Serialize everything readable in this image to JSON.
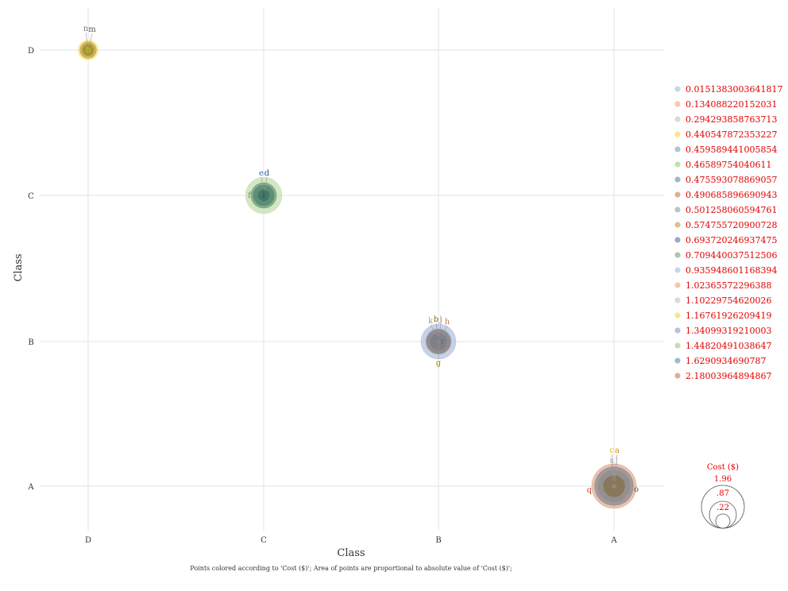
{
  "chart_data": {
    "type": "scatter",
    "title": "",
    "xlabel": "Class",
    "ylabel": "Class",
    "x_categories": [
      "D",
      "C",
      "B",
      "A"
    ],
    "y_categories": [
      "A",
      "B",
      "C",
      "D"
    ],
    "grid": true,
    "legend_placement": "right",
    "caption": "Points colored according to 'Cost ($)'; Area of points are proportional to absolute value of 'Cost ($)';",
    "size_legend": {
      "title": "Cost ($)",
      "values": [
        "1.96",
        ".87",
        ".22"
      ]
    },
    "color_legend": [
      {
        "label": "0.0151383003641817",
        "color": "#c6d7ea"
      },
      {
        "label": "0.134088220152031",
        "color": "#f7c9a7"
      },
      {
        "label": "0.294293858763713",
        "color": "#d9d9d9"
      },
      {
        "label": "0.440547872353227",
        "color": "#fde38a"
      },
      {
        "label": "0.459589441005854",
        "color": "#b4c1e0"
      },
      {
        "label": "0.46589754040611",
        "color": "#c5dfb0"
      },
      {
        "label": "0.475593078869057",
        "color": "#a9b5c7"
      },
      {
        "label": "0.490685896690943",
        "color": "#deae97"
      },
      {
        "label": "0.501258060594761",
        "color": "#bfc3c7"
      },
      {
        "label": "0.574755720900728",
        "color": "#dcc093"
      },
      {
        "label": "0.693720246937475",
        "color": "#9ba7c5"
      },
      {
        "label": "0.709440037512506",
        "color": "#b4c4a8"
      },
      {
        "label": "0.935948601168394",
        "color": "#c6d7ea"
      },
      {
        "label": "1.02365572296388",
        "color": "#f7c9a7"
      },
      {
        "label": "1.10229754620026",
        "color": "#d9d9d9"
      },
      {
        "label": "1.16761926209419",
        "color": "#fde38a"
      },
      {
        "label": "1.34099319210003",
        "color": "#b4c1e0"
      },
      {
        "label": "1.44820491038647",
        "color": "#c5dfb0"
      },
      {
        "label": "1.6290934690787",
        "color": "#a2b9c9"
      },
      {
        "label": "2.18003964894867",
        "color": "#deae97"
      }
    ],
    "points": [
      {
        "label": "n",
        "x": "D",
        "y": "D",
        "value": 0.440547872353227,
        "color": "#fde38a",
        "label_color": "#7f7f7f",
        "dx": -3,
        "dy": -24
      },
      {
        "label": "m",
        "x": "D",
        "y": "D",
        "value": 0.294293858763713,
        "color": "#c2a33a",
        "label_color": "#555555",
        "dx": 5,
        "dy": -23
      },
      {
        "label": "b",
        "x": "D",
        "y": "D",
        "value": 0.134088220152031,
        "color": "#8c8c3c",
        "label_color": "#e8b800",
        "dx": 0,
        "dy": 3
      },
      {
        "label": "e",
        "x": "C",
        "y": "C",
        "value": 1.44820491038647,
        "color": "#c5dfb0",
        "label_color": "#3f6ca6",
        "dx": -3,
        "dy": -25
      },
      {
        "label": "d",
        "x": "C",
        "y": "C",
        "value": 0.709440037512506,
        "color": "#6c9a7a",
        "label_color": "#2a4f7a",
        "dx": 4,
        "dy": -25
      },
      {
        "label": "f",
        "x": "C",
        "y": "C",
        "value": 0.46589754040611,
        "color": "#4f8672",
        "label_color": "#6b8f55",
        "dx": -18,
        "dy": 3
      },
      {
        "label": "i",
        "x": "C",
        "y": "C",
        "value": 0.134088220152031,
        "color": "#3e7060",
        "label_color": "#1f4a3a",
        "dx": 0,
        "dy": 3
      },
      {
        "label": "k",
        "x": "B",
        "y": "B",
        "value": 1.34099319210003,
        "color": "#b4c1e0",
        "label_color": "#999999",
        "dx": -10,
        "dy": -23
      },
      {
        "label": "b",
        "x": "B",
        "y": "B",
        "value": 0.693720246937475,
        "color": "#8c8c96",
        "label_color": "#8a6a00",
        "dx": -3,
        "dy": -25
      },
      {
        "label": "j",
        "x": "B",
        "y": "B",
        "value": 0.574755720900728,
        "color": "#8b8484",
        "label_color": "#777777",
        "dx": 3,
        "dy": -25
      },
      {
        "label": "h",
        "x": "B",
        "y": "B",
        "value": 0.294293858763713,
        "color": "#7c7c86",
        "label_color": "#c27a3a",
        "dx": 11,
        "dy": -22
      },
      {
        "label": "r",
        "x": "B",
        "y": "B",
        "value": 0.134088220152031,
        "color": "#7f7f88",
        "label_color": "#4a6fb0",
        "dx": 5,
        "dy": 3
      },
      {
        "label": "g",
        "x": "B",
        "y": "B",
        "value": 0.0151383003641817,
        "color": "#888888",
        "label_color": "#a08a00",
        "dx": 0,
        "dy": 30
      },
      {
        "label": "c",
        "x": "A",
        "y": "A",
        "value": 2.18003964894867,
        "color": "#deae97",
        "label_color": "#e8b800",
        "dx": -3,
        "dy": -42
      },
      {
        "label": "a",
        "x": "A",
        "y": "A",
        "value": 1.6290934690787,
        "color": "#8f8a90",
        "label_color": "#d89020",
        "dx": 4,
        "dy": -42
      },
      {
        "label": "s",
        "x": "A",
        "y": "A",
        "value": 1.10229754620026,
        "color": "#8e8e8e",
        "label_color": "#a0a0a0",
        "dx": -3,
        "dy": -29
      },
      {
        "label": "j",
        "x": "A",
        "y": "A",
        "value": 0.501258060594761,
        "color": "#8a7c70",
        "label_color": "#aaaaaa",
        "dx": 3,
        "dy": -29
      },
      {
        "label": "q",
        "x": "A",
        "y": "A",
        "value": 0.475593078869057,
        "color": "#8a7450",
        "label_color": "#c04a20",
        "dx": -31,
        "dy": 8
      },
      {
        "label": "o",
        "x": "A",
        "y": "A",
        "value": 0.0151383003641817,
        "color": "#8f8f8f",
        "label_color": "#555555",
        "dx": 28,
        "dy": 7
      }
    ]
  }
}
